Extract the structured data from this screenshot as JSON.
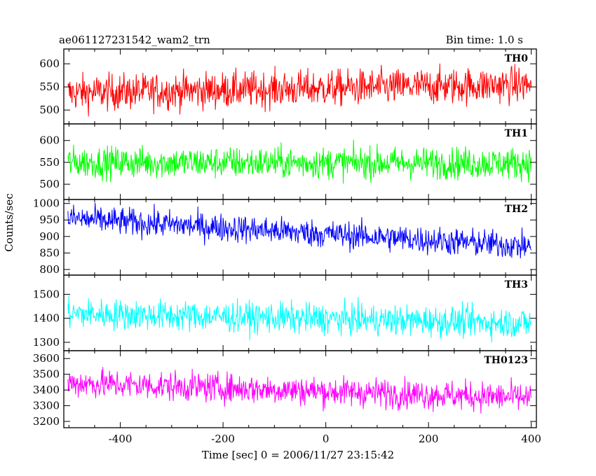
{
  "header": {
    "left_title": "ae061127231542_wam2_trn",
    "right_title": "Bin time: 1.0 s"
  },
  "chart_data": {
    "type": "line",
    "title": "ae061127231542_wam2_trn",
    "subtitle": "Bin time: 1.0 s",
    "xlabel": "Time [sec] 0 = 2006/11/27 23:15:42",
    "ylabel": "Counts/sec",
    "xlim": [
      -510,
      410
    ],
    "x_ticks": [
      -400,
      -200,
      0,
      200,
      400
    ],
    "grid": false,
    "bin_time_sec": 1.0,
    "x_range_of_data": [
      -502,
      400
    ],
    "panels": [
      {
        "name": "TH0",
        "color": "#ff0000",
        "ylim": [
          470,
          632
        ],
        "y_ticks": [
          500,
          550,
          600
        ],
        "trend_start": 537,
        "trend_end": 555,
        "noise_amplitude": 26
      },
      {
        "name": "TH1",
        "color": "#00ff00",
        "ylim": [
          465,
          638
        ],
        "y_ticks": [
          500,
          550,
          600
        ],
        "trend_start": 550,
        "trend_end": 548,
        "noise_amplitude": 24
      },
      {
        "name": "TH2",
        "color": "#0000ff",
        "ylim": [
          783,
          1012
        ],
        "y_ticks": [
          800,
          850,
          900,
          950,
          1000
        ],
        "trend_start": 955,
        "trend_end": 870,
        "noise_amplitude": 28
      },
      {
        "name": "TH3",
        "color": "#00ffff",
        "ylim": [
          1265,
          1580
        ],
        "y_ticks": [
          1300,
          1400,
          1500
        ],
        "trend_start": 1420,
        "trend_end": 1380,
        "noise_amplitude": 42
      },
      {
        "name": "TH0123",
        "color": "#ff00ff",
        "ylim": [
          3160,
          3650
        ],
        "y_ticks": [
          3200,
          3300,
          3400,
          3500,
          3600
        ],
        "trend_start": 3445,
        "trend_end": 3350,
        "noise_amplitude": 62
      }
    ]
  }
}
